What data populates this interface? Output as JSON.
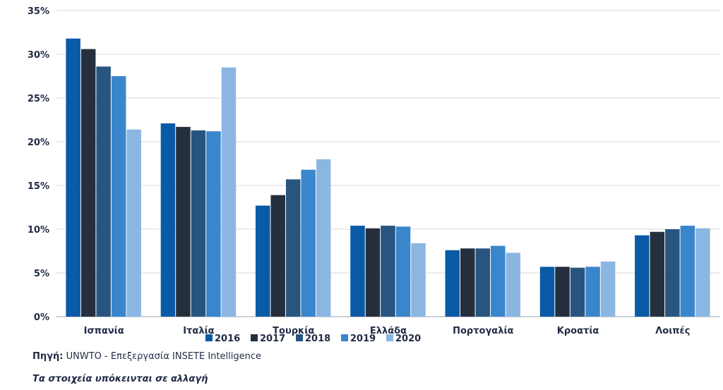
{
  "chart_data": {
    "type": "bar",
    "categories": [
      "Ισπανία",
      "Ιταλία",
      "Τουρκία",
      "Ελλάδα",
      "Πορτογαλία",
      "Κροατία",
      "Λοιπές"
    ],
    "series": [
      {
        "name": "2016",
        "color": "#0a5aa6",
        "values": [
          31.8,
          22.1,
          12.7,
          10.4,
          7.6,
          5.7,
          9.3
        ]
      },
      {
        "name": "2017",
        "color": "#252f3d",
        "values": [
          30.6,
          21.7,
          13.9,
          10.1,
          7.8,
          5.7,
          9.7
        ]
      },
      {
        "name": "2018",
        "color": "#28557f",
        "values": [
          28.6,
          21.3,
          15.7,
          10.4,
          7.8,
          5.6,
          10.0
        ]
      },
      {
        "name": "2019",
        "color": "#3a86cd",
        "values": [
          27.5,
          21.2,
          16.8,
          10.3,
          8.1,
          5.7,
          10.4
        ]
      },
      {
        "name": "2020",
        "color": "#8bb6e2",
        "values": [
          21.4,
          28.5,
          18.0,
          8.4,
          7.3,
          6.3,
          10.1
        ]
      }
    ],
    "yticks": [
      "0%",
      "5%",
      "10%",
      "15%",
      "20%",
      "25%",
      "30%",
      "35%"
    ],
    "ylim": [
      0,
      35
    ],
    "grid": true,
    "legend": "bottom-center",
    "title": "",
    "xlabel": "",
    "ylabel": ""
  },
  "footer": {
    "source_label": "Πηγή:",
    "source_text": "UNWTO - Επεξεργασία INSETE Intelligence",
    "note": "Τα στοιχεία υπόκεινται σε αλλαγή"
  }
}
